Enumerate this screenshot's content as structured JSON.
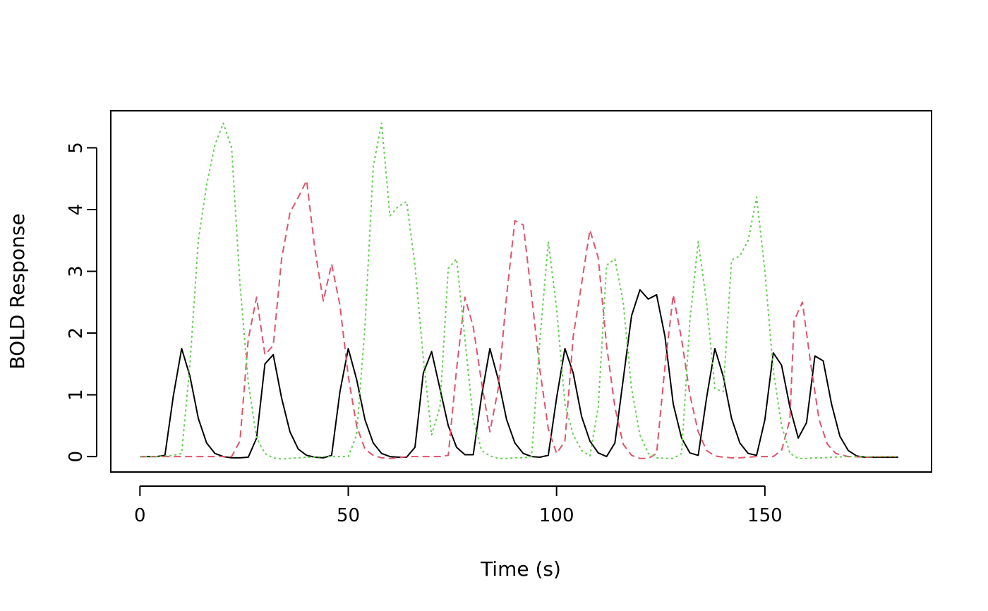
{
  "chart_data": {
    "type": "line",
    "title": "",
    "xlabel": "Time (s)",
    "ylabel": "BOLD Response",
    "xlim": [
      -7,
      190
    ],
    "ylim": [
      -0.25,
      5.6
    ],
    "x_ticks": [
      0,
      50,
      100,
      150
    ],
    "y_ticks": [
      0,
      1,
      2,
      3,
      4,
      5
    ],
    "x_tick_labels": [
      "0",
      "50",
      "100",
      "150"
    ],
    "y_tick_labels": [
      "0",
      "1",
      "2",
      "3",
      "4",
      "5"
    ],
    "grid": false,
    "legend": "none",
    "series": [
      {
        "color": "#000000",
        "dash": "solid",
        "points": [
          [
            0,
            0
          ],
          [
            2,
            0
          ],
          [
            4,
            0
          ],
          [
            6,
            0.02
          ],
          [
            8,
            0.98
          ],
          [
            10,
            1.75
          ],
          [
            12,
            1.3
          ],
          [
            14,
            0.62
          ],
          [
            16,
            0.22
          ],
          [
            18,
            0.05
          ],
          [
            20,
            0
          ],
          [
            22,
            -0.02
          ],
          [
            24,
            -0.02
          ],
          [
            26,
            -0.01
          ],
          [
            28,
            0.3
          ],
          [
            30,
            1.5
          ],
          [
            32,
            1.65
          ],
          [
            34,
            0.95
          ],
          [
            36,
            0.4
          ],
          [
            38,
            0.12
          ],
          [
            40,
            0.02
          ],
          [
            42,
            -0.01
          ],
          [
            44,
            -0.02
          ],
          [
            46,
            0.02
          ],
          [
            48,
            1.05
          ],
          [
            50,
            1.75
          ],
          [
            52,
            1.25
          ],
          [
            54,
            0.6
          ],
          [
            56,
            0.22
          ],
          [
            58,
            0.05
          ],
          [
            60,
            0
          ],
          [
            62,
            -0.01
          ],
          [
            64,
            -0.01
          ],
          [
            66,
            0.15
          ],
          [
            68,
            1.35
          ],
          [
            70,
            1.7
          ],
          [
            72,
            1.1
          ],
          [
            74,
            0.5
          ],
          [
            76,
            0.15
          ],
          [
            78,
            0.03
          ],
          [
            80,
            0.03
          ],
          [
            82,
            0.98
          ],
          [
            84,
            1.75
          ],
          [
            86,
            1.25
          ],
          [
            88,
            0.6
          ],
          [
            90,
            0.22
          ],
          [
            92,
            0.05
          ],
          [
            94,
            0
          ],
          [
            96,
            -0.01
          ],
          [
            98,
            0.02
          ],
          [
            100,
            0.95
          ],
          [
            102,
            1.75
          ],
          [
            104,
            1.35
          ],
          [
            106,
            0.65
          ],
          [
            108,
            0.25
          ],
          [
            110,
            0.06
          ],
          [
            112,
            0
          ],
          [
            114,
            0.22
          ],
          [
            116,
            1.25
          ],
          [
            118,
            2.28
          ],
          [
            120,
            2.7
          ],
          [
            122,
            2.55
          ],
          [
            124,
            2.62
          ],
          [
            126,
            1.95
          ],
          [
            128,
            0.85
          ],
          [
            130,
            0.3
          ],
          [
            132,
            0.06
          ],
          [
            134,
            0.02
          ],
          [
            136,
            0.95
          ],
          [
            138,
            1.75
          ],
          [
            140,
            1.3
          ],
          [
            142,
            0.62
          ],
          [
            144,
            0.22
          ],
          [
            146,
            0.05
          ],
          [
            148,
            0.02
          ],
          [
            150,
            0.6
          ],
          [
            152,
            1.68
          ],
          [
            154,
            1.48
          ],
          [
            156,
            0.8
          ],
          [
            158,
            0.3
          ],
          [
            160,
            0.55
          ],
          [
            162,
            1.63
          ],
          [
            164,
            1.55
          ],
          [
            166,
            0.85
          ],
          [
            168,
            0.33
          ],
          [
            170,
            0.1
          ],
          [
            172,
            0.01
          ],
          [
            174,
            -0.01
          ],
          [
            176,
            -0.01
          ],
          [
            178,
            -0.01
          ],
          [
            180,
            -0.01
          ],
          [
            182,
            -0.01
          ]
        ]
      },
      {
        "color": "#DF536B",
        "dash": "dashed",
        "points": [
          [
            0,
            0
          ],
          [
            4,
            0
          ],
          [
            8,
            0
          ],
          [
            12,
            0
          ],
          [
            16,
            0
          ],
          [
            20,
            0
          ],
          [
            22,
            0
          ],
          [
            24,
            0.25
          ],
          [
            26,
            1.9
          ],
          [
            28,
            2.58
          ],
          [
            30,
            1.65
          ],
          [
            32,
            1.8
          ],
          [
            34,
            3.2
          ],
          [
            36,
            3.95
          ],
          [
            38,
            4.2
          ],
          [
            40,
            4.47
          ],
          [
            42,
            3.35
          ],
          [
            44,
            2.52
          ],
          [
            46,
            3.12
          ],
          [
            48,
            2.45
          ],
          [
            50,
            1.3
          ],
          [
            52,
            0.5
          ],
          [
            54,
            0.12
          ],
          [
            56,
            0.02
          ],
          [
            58,
            -0.02
          ],
          [
            60,
            -0.03
          ],
          [
            62,
            -0.02
          ],
          [
            64,
            0
          ],
          [
            66,
            0
          ],
          [
            70,
            0
          ],
          [
            72,
            0
          ],
          [
            74,
            0.02
          ],
          [
            76,
            1.42
          ],
          [
            78,
            2.58
          ],
          [
            80,
            2.1
          ],
          [
            82,
            1.2
          ],
          [
            84,
            0.4
          ],
          [
            86,
            1.1
          ],
          [
            88,
            2.6
          ],
          [
            90,
            3.82
          ],
          [
            92,
            3.75
          ],
          [
            94,
            2.6
          ],
          [
            96,
            1.4
          ],
          [
            98,
            0.45
          ],
          [
            100,
            0.05
          ],
          [
            102,
            0.25
          ],
          [
            104,
            1.95
          ],
          [
            106,
            2.8
          ],
          [
            108,
            3.67
          ],
          [
            110,
            3.22
          ],
          [
            112,
            1.8
          ],
          [
            114,
            0.8
          ],
          [
            116,
            0.2
          ],
          [
            118,
            0.02
          ],
          [
            120,
            -0.03
          ],
          [
            122,
            -0.03
          ],
          [
            124,
            0.05
          ],
          [
            126,
            1.45
          ],
          [
            128,
            2.62
          ],
          [
            130,
            1.9
          ],
          [
            132,
            1.0
          ],
          [
            134,
            0.4
          ],
          [
            136,
            0.1
          ],
          [
            138,
            0.01
          ],
          [
            140,
            -0.01
          ],
          [
            142,
            -0.02
          ],
          [
            144,
            -0.02
          ],
          [
            146,
            -0.01
          ],
          [
            148,
            0
          ],
          [
            150,
            0
          ],
          [
            152,
            0
          ],
          [
            154,
            0.1
          ],
          [
            156,
            0.6
          ],
          [
            157,
            2.2
          ],
          [
            159,
            2.5
          ],
          [
            161,
            1.5
          ],
          [
            163,
            0.6
          ],
          [
            165,
            0.2
          ],
          [
            167,
            0.05
          ],
          [
            170,
            0
          ],
          [
            174,
            -0.01
          ],
          [
            178,
            0
          ],
          [
            182,
            0
          ]
        ]
      },
      {
        "color": "#61D04F",
        "dash": "dotted",
        "points": [
          [
            0,
            0
          ],
          [
            4,
            0
          ],
          [
            8,
            0.02
          ],
          [
            10,
            0.05
          ],
          [
            12,
            1.5
          ],
          [
            14,
            3.5
          ],
          [
            16,
            4.4
          ],
          [
            18,
            5.05
          ],
          [
            20,
            5.4
          ],
          [
            22,
            5.0
          ],
          [
            24,
            2.8
          ],
          [
            26,
            1.2
          ],
          [
            28,
            0.3
          ],
          [
            30,
            0.05
          ],
          [
            32,
            -0.02
          ],
          [
            34,
            -0.04
          ],
          [
            36,
            -0.03
          ],
          [
            38,
            -0.02
          ],
          [
            40,
            -0.01
          ],
          [
            42,
            -0.01
          ],
          [
            44,
            0
          ],
          [
            46,
            0
          ],
          [
            48,
            0
          ],
          [
            50,
            0
          ],
          [
            52,
            0.35
          ],
          [
            54,
            2.1
          ],
          [
            56,
            4.7
          ],
          [
            58,
            5.4
          ],
          [
            60,
            3.9
          ],
          [
            62,
            4.05
          ],
          [
            64,
            4.13
          ],
          [
            66,
            3.1
          ],
          [
            68,
            1.6
          ],
          [
            70,
            0.35
          ],
          [
            72,
            0.8
          ],
          [
            74,
            3.05
          ],
          [
            76,
            3.2
          ],
          [
            78,
            1.9
          ],
          [
            80,
            0.6
          ],
          [
            82,
            0.1
          ],
          [
            84,
            0.01
          ],
          [
            86,
            -0.03
          ],
          [
            88,
            -0.03
          ],
          [
            90,
            -0.02
          ],
          [
            92,
            -0.02
          ],
          [
            94,
            0
          ],
          [
            96,
            1.9
          ],
          [
            98,
            3.48
          ],
          [
            100,
            2.4
          ],
          [
            102,
            0.85
          ],
          [
            104,
            0.35
          ],
          [
            106,
            0.1
          ],
          [
            108,
            0.01
          ],
          [
            110,
            0.8
          ],
          [
            112,
            3.1
          ],
          [
            114,
            3.2
          ],
          [
            116,
            2.5
          ],
          [
            118,
            1.1
          ],
          [
            120,
            0.35
          ],
          [
            122,
            0.05
          ],
          [
            124,
            -0.02
          ],
          [
            126,
            -0.03
          ],
          [
            128,
            -0.03
          ],
          [
            130,
            0.05
          ],
          [
            132,
            2.2
          ],
          [
            134,
            3.48
          ],
          [
            136,
            2.5
          ],
          [
            138,
            1.1
          ],
          [
            140,
            1.05
          ],
          [
            142,
            3.18
          ],
          [
            144,
            3.25
          ],
          [
            146,
            3.5
          ],
          [
            148,
            4.2
          ],
          [
            150,
            3.0
          ],
          [
            152,
            1.4
          ],
          [
            154,
            0.5
          ],
          [
            156,
            0.05
          ],
          [
            158,
            -0.03
          ],
          [
            160,
            -0.03
          ],
          [
            162,
            -0.02
          ],
          [
            164,
            -0.02
          ],
          [
            166,
            -0.01
          ],
          [
            170,
            0
          ],
          [
            174,
            0
          ],
          [
            178,
            0
          ],
          [
            182,
            0
          ]
        ]
      }
    ]
  }
}
